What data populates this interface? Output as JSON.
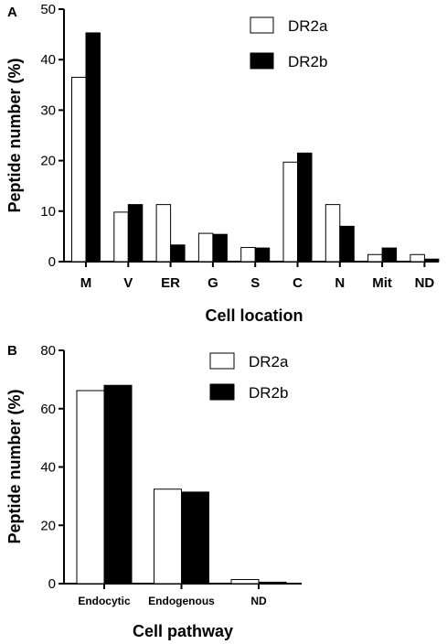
{
  "chart_data": [
    {
      "panel": "A",
      "type": "bar",
      "xlabel": "Cell location",
      "ylabel": "Peptide number (%)",
      "ylim": [
        0,
        50
      ],
      "yticks": [
        0,
        10,
        20,
        30,
        40,
        50
      ],
      "categories": [
        "M",
        "V",
        "ER",
        "G",
        "S",
        "C",
        "N",
        "Mit",
        "ND"
      ],
      "series": [
        {
          "name": "DR2a",
          "color": "#ffffff",
          "values": [
            36.5,
            9.8,
            11.3,
            5.6,
            2.8,
            19.7,
            11.3,
            1.4,
            1.4
          ]
        },
        {
          "name": "DR2b",
          "color": "#000000",
          "values": [
            45.3,
            11.3,
            3.3,
            5.4,
            2.7,
            21.5,
            7.0,
            2.7,
            0.5
          ]
        }
      ],
      "legend": "top-right",
      "grid": false
    },
    {
      "panel": "B",
      "type": "bar",
      "xlabel": "Cell pathway",
      "ylabel": "Peptide number (%)",
      "ylim": [
        0,
        80
      ],
      "yticks": [
        0,
        20,
        40,
        60,
        80
      ],
      "categories": [
        "Endocytic",
        "Endogenous",
        "ND"
      ],
      "series": [
        {
          "name": "DR2a",
          "color": "#ffffff",
          "values": [
            66.2,
            32.4,
            1.4
          ]
        },
        {
          "name": "DR2b",
          "color": "#000000",
          "values": [
            68.0,
            31.4,
            0.5
          ]
        }
      ],
      "legend": "top-right",
      "grid": false
    }
  ]
}
